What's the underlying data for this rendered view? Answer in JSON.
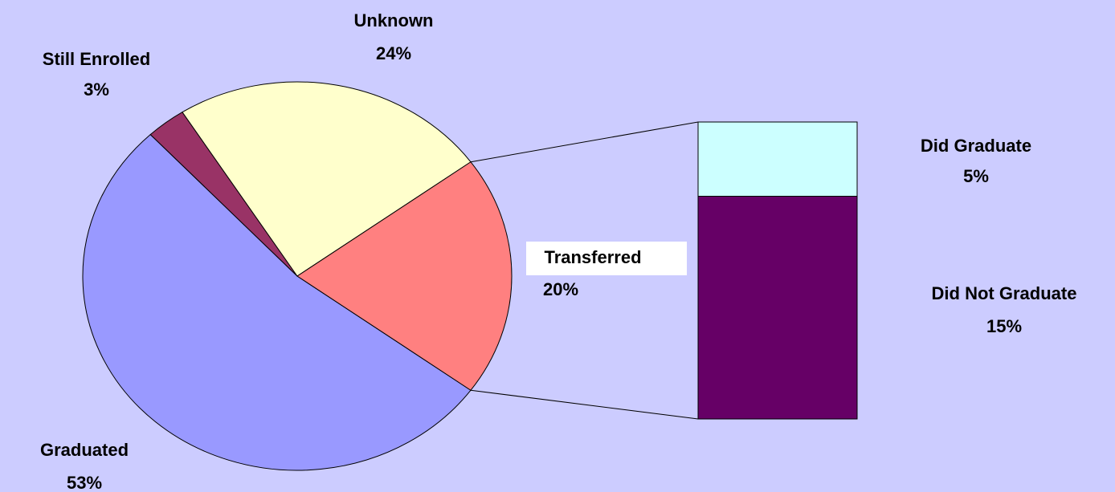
{
  "chart_data": {
    "type": "pie",
    "categories": [
      "Graduated",
      "Still Enrolled",
      "Unknown",
      "Transferred"
    ],
    "values": [
      53,
      3,
      24,
      20
    ],
    "value_labels": [
      "53%",
      "3%",
      "24%",
      "20%"
    ],
    "colors": [
      "#9999ff",
      "#993366",
      "#ffffcc",
      "#ff8080"
    ],
    "breakdown": {
      "categories": [
        "Did Graduate",
        "Did Not Graduate"
      ],
      "values": [
        5,
        15
      ],
      "value_labels": [
        "5%",
        "15%"
      ],
      "colors": [
        "#ccffff",
        "#660066"
      ]
    }
  }
}
